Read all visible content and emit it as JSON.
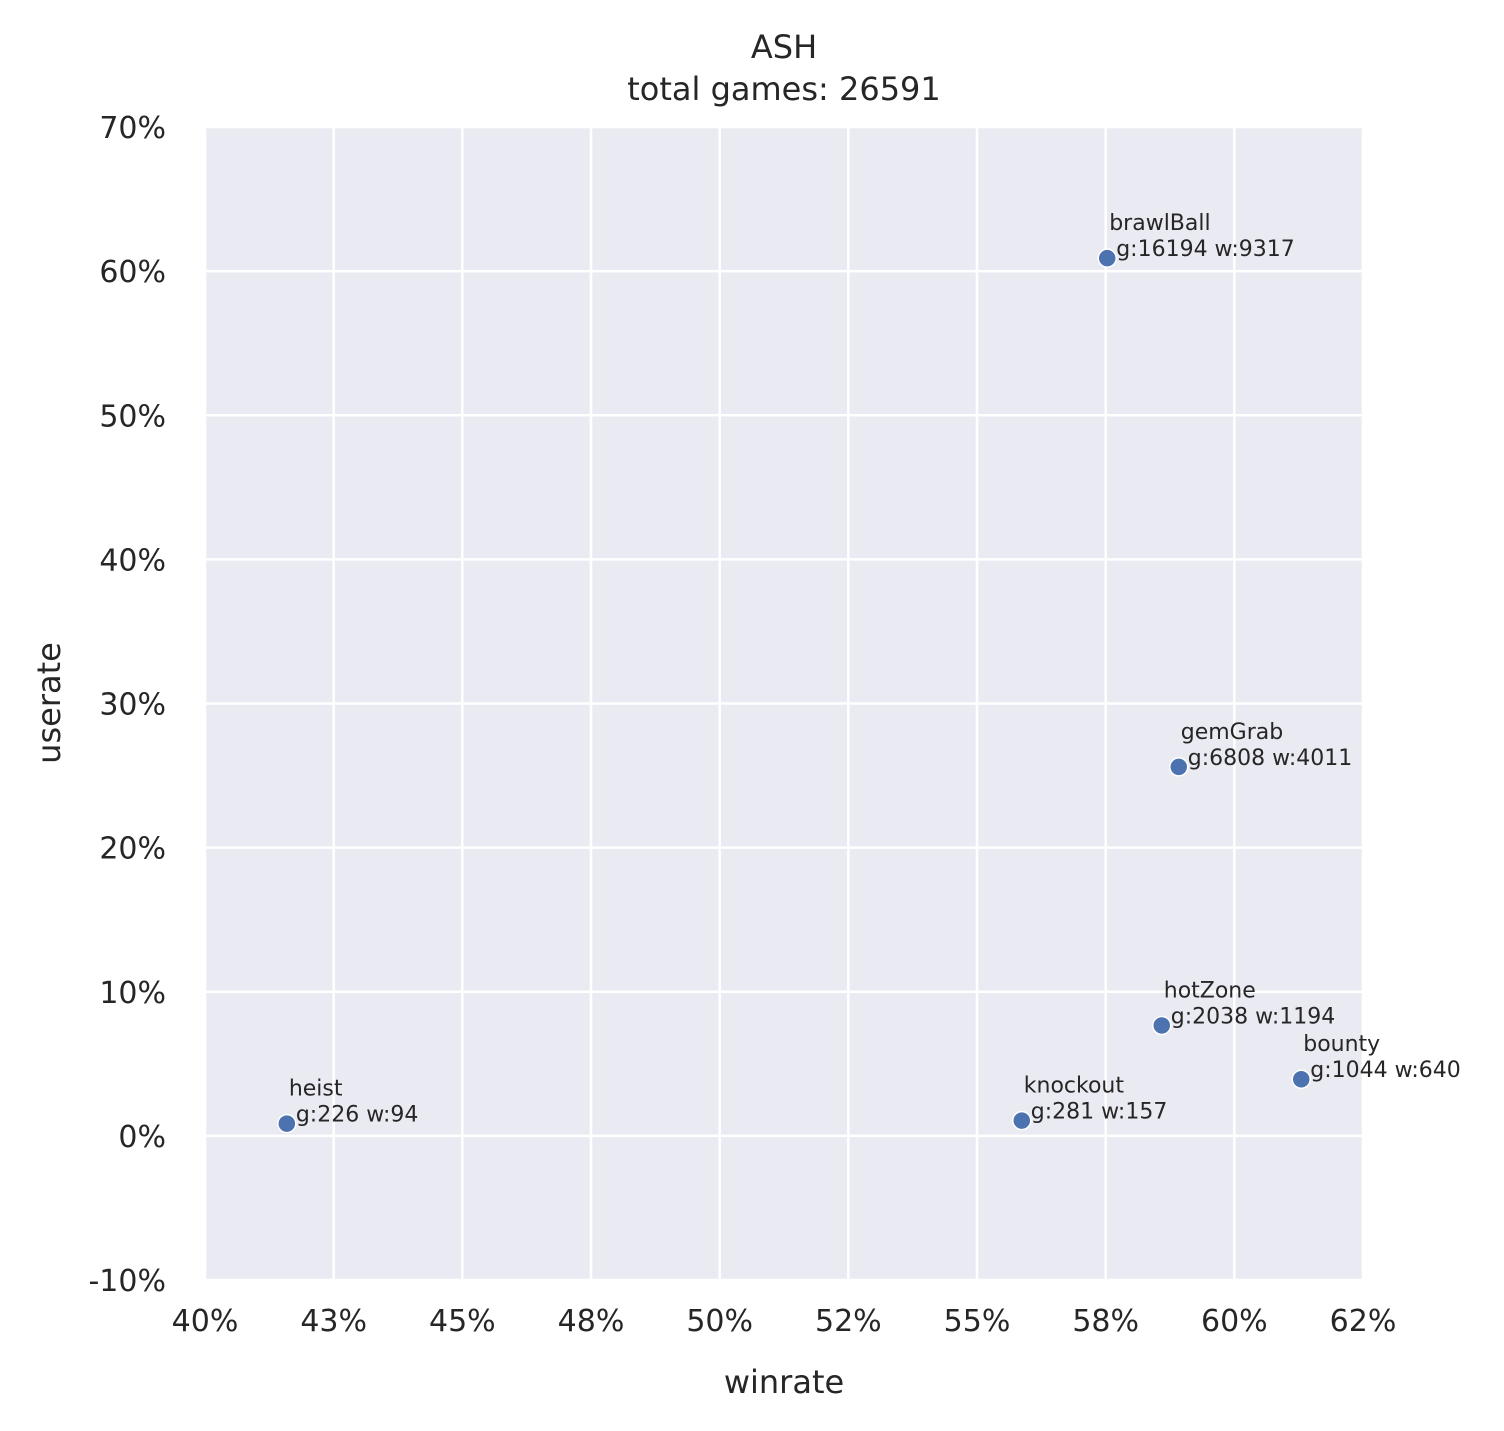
{
  "chart_data": {
    "type": "scatter",
    "title": "ASH",
    "subtitle": "total games: 26591",
    "xlabel": "winrate",
    "ylabel": "userate",
    "xlim": [
      0.4,
      0.625
    ],
    "ylim": [
      -0.1,
      0.7
    ],
    "x_ticks": [
      {
        "value": 0.4,
        "label": "40%"
      },
      {
        "value": 0.425,
        "label": "43%"
      },
      {
        "value": 0.45,
        "label": "45%"
      },
      {
        "value": 0.475,
        "label": "48%"
      },
      {
        "value": 0.5,
        "label": "50%"
      },
      {
        "value": 0.525,
        "label": "52%"
      },
      {
        "value": 0.55,
        "label": "55%"
      },
      {
        "value": 0.575,
        "label": "58%"
      },
      {
        "value": 0.6,
        "label": "60%"
      },
      {
        "value": 0.625,
        "label": "62%"
      }
    ],
    "y_ticks": [
      {
        "value": -0.1,
        "label": "-10%"
      },
      {
        "value": 0.0,
        "label": "0%"
      },
      {
        "value": 0.1,
        "label": "10%"
      },
      {
        "value": 0.2,
        "label": "20%"
      },
      {
        "value": 0.3,
        "label": "30%"
      },
      {
        "value": 0.4,
        "label": "40%"
      },
      {
        "value": 0.5,
        "label": "50%"
      },
      {
        "value": 0.6,
        "label": "60%"
      },
      {
        "value": 0.7,
        "label": "70%"
      }
    ],
    "grid": true,
    "colors": {
      "background": "#eaeaf2",
      "grid": "#ffffff",
      "point": "#4c72b0"
    },
    "points": [
      {
        "name": "brawlBall",
        "stats": "g:16194 w:9317",
        "x": 0.5753,
        "y": 0.609
      },
      {
        "name": "gemGrab",
        "stats": "g:6808 w:4011",
        "x": 0.5892,
        "y": 0.256
      },
      {
        "name": "hotZone",
        "stats": "g:2038 w:1194",
        "x": 0.5859,
        "y": 0.0766
      },
      {
        "name": "bounty",
        "stats": "g:1044 w:640",
        "x": 0.613,
        "y": 0.0393
      },
      {
        "name": "knockout",
        "stats": "g:281 w:157",
        "x": 0.5587,
        "y": 0.0106
      },
      {
        "name": "heist",
        "stats": "g:226 w:94",
        "x": 0.4159,
        "y": 0.0085
      }
    ]
  }
}
